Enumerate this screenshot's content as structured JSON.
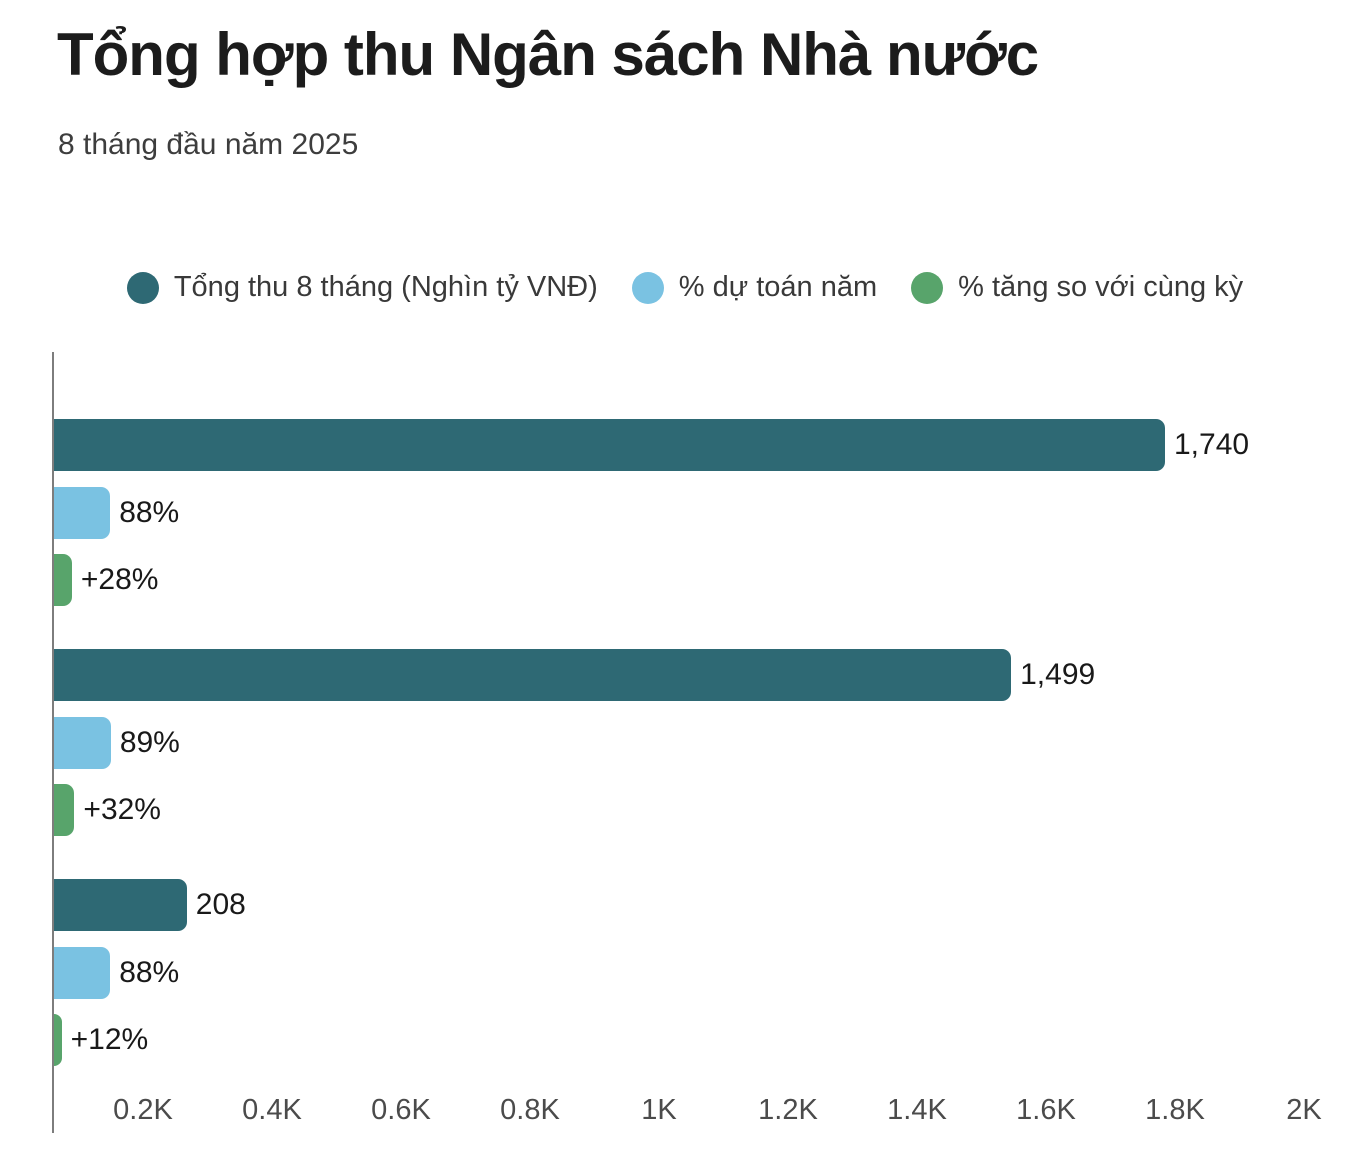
{
  "header": {
    "title": "Tổng hợp thu Ngân sách Nhà nước",
    "subtitle": "8 tháng đầu năm 2025"
  },
  "chart_data": {
    "type": "bar",
    "orientation": "horizontal",
    "title": "Tổng hợp thu Ngân sách Nhà nước",
    "subtitle": "8 tháng đầu năm 2025",
    "categories_visible": false,
    "row_count": 3,
    "series": [
      {
        "name": "Tổng thu 8 tháng (Nghìn tỷ VNĐ)",
        "color": "#2e6974",
        "values": [
          1740,
          1499,
          208
        ],
        "value_labels": [
          "1,740",
          "1,499",
          "208"
        ]
      },
      {
        "name": "% dự toán năm",
        "color": "#7ac2e2",
        "values": [
          88,
          89,
          88
        ],
        "value_labels": [
          "88%",
          "89%",
          "88%"
        ]
      },
      {
        "name": "% tăng so với cùng kỳ",
        "color": "#58a46b",
        "values": [
          28,
          32,
          12
        ],
        "value_labels": [
          "+28%",
          "+32%",
          "+12%"
        ]
      }
    ],
    "xlim": [
      0,
      2000
    ],
    "x_ticks": [
      {
        "value": 200,
        "label": "0.2K"
      },
      {
        "value": 400,
        "label": "0.4K"
      },
      {
        "value": 600,
        "label": "0.6K"
      },
      {
        "value": 800,
        "label": "0.8K"
      },
      {
        "value": 1000,
        "label": "1K"
      },
      {
        "value": 1200,
        "label": "1.2K"
      },
      {
        "value": 1400,
        "label": "1.4K"
      },
      {
        "value": 1600,
        "label": "1.6K"
      },
      {
        "value": 1800,
        "label": "1.8K"
      },
      {
        "value": 2000,
        "label": "2K"
      }
    ],
    "legend_position": "top",
    "grid": false
  },
  "colors": {
    "background": "#ffffff",
    "axis_line": "#7d7d7d",
    "title_text": "#1c1c1c",
    "subtitle_text": "#3d3d3d",
    "legend_text": "#393939",
    "tick_text": "#4b4b4b",
    "value_label_text": "#191919"
  }
}
